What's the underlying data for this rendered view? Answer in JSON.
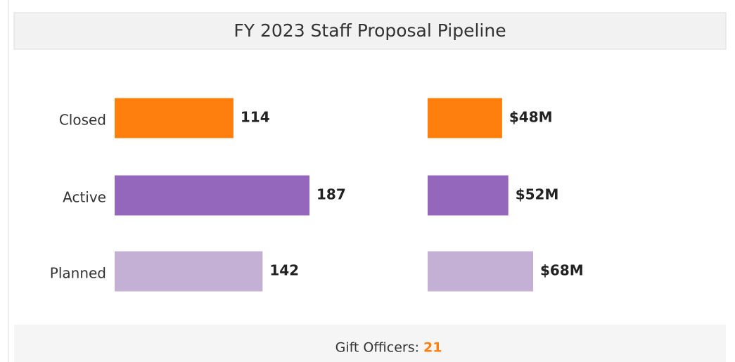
{
  "title": "FY 2023 Staff Proposal Pipeline",
  "chart_data": [
    {
      "type": "bar",
      "orientation": "horizontal",
      "categories": [
        "Closed",
        "Active",
        "Planned"
      ],
      "values": [
        114,
        187,
        142
      ],
      "colors": [
        "#ff7f0e",
        "#9467bd",
        "#c5b0d5"
      ]
    },
    {
      "type": "bar",
      "orientation": "horizontal",
      "values": [
        48,
        52,
        68
      ],
      "value_labels": [
        "$48M",
        "$52M",
        "$68M"
      ],
      "colors": [
        "#ff7f0e",
        "#9467bd",
        "#c5b0d5"
      ]
    }
  ],
  "footer": {
    "label": "Gift Officers:",
    "value": 21
  }
}
